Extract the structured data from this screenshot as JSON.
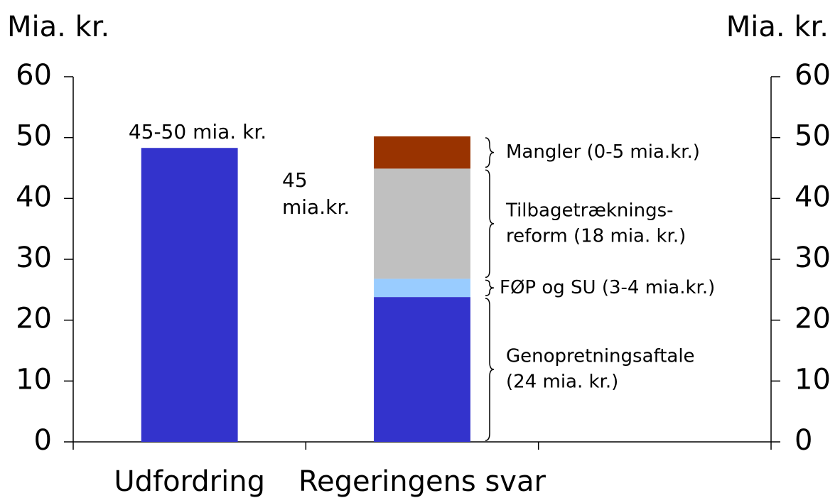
{
  "chart_data": {
    "type": "stacked_bar",
    "y_label": "Mia. kr.",
    "y2_label": "Mia. kr.",
    "categories": [
      "Udfordring",
      "Regeringens svar",
      null
    ],
    "series": [
      {
        "name": [
          "Genopretningsaftale",
          "(24 mia. kr.)"
        ],
        "color": "#3333cc",
        "values": [
          48.3,
          23.8,
          null
        ]
      },
      {
        "name": [
          "FØP og SU (3-4 mia.kr.)"
        ],
        "color": "#99ccff",
        "values": [
          null,
          3.0,
          null
        ]
      },
      {
        "name": [
          "Tilbagetræknings-",
          "reform (18 mia. kr.)"
        ],
        "color": "#c0c0c0",
        "values": [
          null,
          18.1,
          null
        ]
      },
      {
        "name": [
          "Mangler (0-5 mia.kr.)"
        ],
        "color": "#993300",
        "values": [
          null,
          5.3,
          null
        ]
      }
    ],
    "annotations": [
      [
        "45-50 mia. kr."
      ],
      [
        "45",
        "mia.kr."
      ]
    ],
    "ylim": [
      0,
      60
    ],
    "yticks": [
      0,
      10,
      20,
      30,
      40,
      50,
      60
    ],
    "y2lim": [
      0,
      60
    ],
    "y2ticks": [
      0,
      10,
      20,
      30,
      40,
      50,
      60
    ],
    "grid": false
  }
}
